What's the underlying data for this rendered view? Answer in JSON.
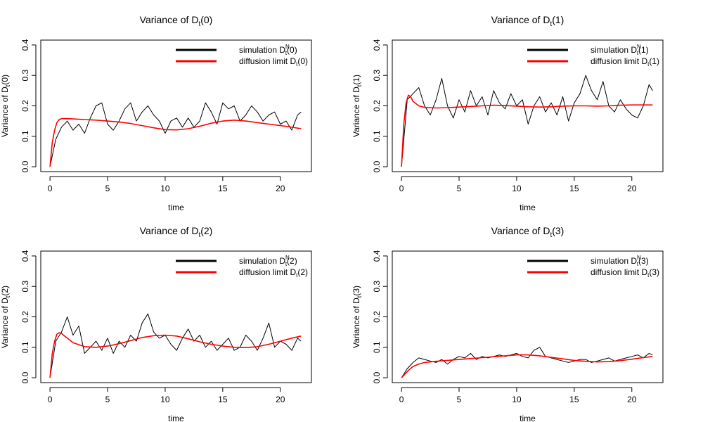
{
  "colors": {
    "simulation": "#000000",
    "diffusion": "#ff0000",
    "axes": "#000000"
  },
  "chart_data": [
    {
      "type": "line",
      "index": "0",
      "title_prefix": "Variance of D",
      "title_sub": "t",
      "title_suffix": "(0)",
      "xlabel": "time",
      "ylabel_prefix": "Variance of D",
      "ylabel_sub": "t",
      "ylabel_suffix": "(0)",
      "xlim": [
        -0.8,
        22.7
      ],
      "ylim": [
        -0.016,
        0.416
      ],
      "xticks": [
        0,
        5,
        10,
        15,
        20
      ],
      "xtick_labels": [
        "0",
        "5",
        "10",
        "15",
        "20"
      ],
      "yticks": [
        0,
        0.1,
        0.2,
        0.3,
        0.4
      ],
      "ytick_labels": [
        "0.0",
        "0.1",
        "0.2",
        "0.3",
        "0.4"
      ],
      "legend_position": "top-right",
      "legend": {
        "sim_prefix": "simulation D",
        "sim_sub": "t",
        "sim_sup": "N",
        "sim_suffix": "(0)",
        "diff_prefix": "diffusion limit D",
        "diff_sub": "t",
        "diff_suffix": "(0)"
      },
      "series": [
        {
          "name": "simulation",
          "x": [
            0,
            0.5,
            1,
            1.5,
            2,
            2.5,
            3,
            3.5,
            4,
            4.5,
            5,
            5.5,
            6,
            6.5,
            7,
            7.5,
            8,
            8.5,
            9,
            9.5,
            10,
            10.5,
            11,
            11.5,
            12,
            12.5,
            13,
            13.5,
            14,
            14.5,
            15,
            15.5,
            16,
            16.5,
            17,
            17.5,
            18,
            18.5,
            19,
            19.5,
            20,
            20.5,
            21,
            21.5,
            21.8
          ],
          "values": [
            0.0,
            0.09,
            0.13,
            0.15,
            0.12,
            0.14,
            0.11,
            0.16,
            0.2,
            0.21,
            0.14,
            0.12,
            0.15,
            0.19,
            0.21,
            0.15,
            0.18,
            0.2,
            0.17,
            0.15,
            0.11,
            0.15,
            0.16,
            0.13,
            0.16,
            0.13,
            0.15,
            0.21,
            0.18,
            0.14,
            0.21,
            0.19,
            0.2,
            0.15,
            0.17,
            0.2,
            0.18,
            0.15,
            0.17,
            0.18,
            0.14,
            0.15,
            0.12,
            0.17,
            0.18
          ]
        },
        {
          "name": "diffusion limit",
          "x": [
            0,
            0.2,
            0.4,
            0.6,
            0.8,
            1,
            1.5,
            2,
            3,
            4,
            5,
            6,
            7,
            8,
            9,
            10,
            11,
            12,
            13,
            14,
            15,
            16,
            17,
            18,
            19,
            20,
            21,
            21.8
          ],
          "values": [
            0.0,
            0.08,
            0.12,
            0.145,
            0.155,
            0.158,
            0.158,
            0.157,
            0.155,
            0.153,
            0.15,
            0.147,
            0.142,
            0.135,
            0.128,
            0.122,
            0.121,
            0.125,
            0.133,
            0.143,
            0.15,
            0.153,
            0.15,
            0.145,
            0.14,
            0.135,
            0.13,
            0.125
          ]
        }
      ]
    },
    {
      "type": "line",
      "index": "1",
      "title_prefix": "Variance of D",
      "title_sub": "t",
      "title_suffix": "(1)",
      "xlabel": "time",
      "ylabel_prefix": "Variance of D",
      "ylabel_sub": "t",
      "ylabel_suffix": "(1)",
      "xlim": [
        -0.8,
        22.7
      ],
      "ylim": [
        -0.016,
        0.416
      ],
      "xticks": [
        0,
        5,
        10,
        15,
        20
      ],
      "xtick_labels": [
        "0",
        "5",
        "10",
        "15",
        "20"
      ],
      "yticks": [
        0,
        0.1,
        0.2,
        0.3,
        0.4
      ],
      "ytick_labels": [
        "0.0",
        "0.1",
        "0.2",
        "0.3",
        "0.4"
      ],
      "legend_position": "top-right",
      "legend": {
        "sim_prefix": "simulation D",
        "sim_sub": "t",
        "sim_sup": "N",
        "sim_suffix": "(1)",
        "diff_prefix": "diffusion limit D",
        "diff_sub": "t",
        "diff_suffix": "(1)"
      },
      "series": [
        {
          "name": "simulation",
          "x": [
            0,
            0.5,
            1,
            1.5,
            2,
            2.5,
            3,
            3.5,
            4,
            4.5,
            5,
            5.5,
            6,
            6.5,
            7,
            7.5,
            8,
            8.5,
            9,
            9.5,
            10,
            10.5,
            11,
            11.5,
            12,
            12.5,
            13,
            13.5,
            14,
            14.5,
            15,
            15.5,
            16,
            16.5,
            17,
            17.5,
            18,
            18.5,
            19,
            19.5,
            20,
            20.5,
            21,
            21.5,
            21.8
          ],
          "values": [
            0.0,
            0.22,
            0.24,
            0.26,
            0.2,
            0.17,
            0.22,
            0.29,
            0.2,
            0.16,
            0.22,
            0.18,
            0.25,
            0.2,
            0.23,
            0.17,
            0.25,
            0.21,
            0.19,
            0.24,
            0.2,
            0.22,
            0.14,
            0.2,
            0.23,
            0.18,
            0.21,
            0.17,
            0.23,
            0.15,
            0.21,
            0.24,
            0.3,
            0.25,
            0.22,
            0.28,
            0.2,
            0.18,
            0.22,
            0.19,
            0.17,
            0.16,
            0.2,
            0.27,
            0.25
          ]
        },
        {
          "name": "diffusion limit",
          "x": [
            0,
            0.2,
            0.4,
            0.6,
            0.8,
            1,
            1.5,
            2,
            3,
            4,
            5,
            6,
            7,
            8,
            9,
            10,
            11,
            12,
            13,
            14,
            15,
            16,
            17,
            18,
            19,
            20,
            21,
            21.8
          ],
          "values": [
            0.0,
            0.14,
            0.21,
            0.235,
            0.23,
            0.215,
            0.2,
            0.195,
            0.193,
            0.194,
            0.196,
            0.198,
            0.2,
            0.202,
            0.201,
            0.199,
            0.197,
            0.196,
            0.197,
            0.199,
            0.2,
            0.2,
            0.199,
            0.2,
            0.202,
            0.203,
            0.203,
            0.203
          ]
        }
      ]
    },
    {
      "type": "line",
      "index": "2",
      "title_prefix": "Variance of D",
      "title_sub": "t",
      "title_suffix": "(2)",
      "xlabel": "time",
      "ylabel_prefix": "Variance of D",
      "ylabel_sub": "t",
      "ylabel_suffix": "(2)",
      "xlim": [
        -0.8,
        22.7
      ],
      "ylim": [
        -0.016,
        0.416
      ],
      "xticks": [
        0,
        5,
        10,
        15,
        20
      ],
      "xtick_labels": [
        "0",
        "5",
        "10",
        "15",
        "20"
      ],
      "yticks": [
        0,
        0.1,
        0.2,
        0.3,
        0.4
      ],
      "ytick_labels": [
        "0.0",
        "0.1",
        "0.2",
        "0.3",
        "0.4"
      ],
      "legend_position": "top-right",
      "legend": {
        "sim_prefix": "simulation D",
        "sim_sub": "t",
        "sim_sup": "N",
        "sim_suffix": "(2)",
        "diff_prefix": "diffusion limit D",
        "diff_sub": "t",
        "diff_suffix": "(2)"
      },
      "series": [
        {
          "name": "simulation",
          "x": [
            0,
            0.5,
            1,
            1.5,
            2,
            2.5,
            3,
            3.5,
            4,
            4.5,
            5,
            5.5,
            6,
            6.5,
            7,
            7.5,
            8,
            8.5,
            9,
            9.5,
            10,
            10.5,
            11,
            11.5,
            12,
            12.5,
            13,
            13.5,
            14,
            14.5,
            15,
            15.5,
            16,
            16.5,
            17,
            17.5,
            18,
            18.5,
            19,
            19.5,
            20,
            20.5,
            21,
            21.5,
            21.8
          ],
          "values": [
            0.0,
            0.12,
            0.15,
            0.2,
            0.14,
            0.17,
            0.08,
            0.1,
            0.12,
            0.09,
            0.13,
            0.08,
            0.12,
            0.1,
            0.14,
            0.12,
            0.18,
            0.21,
            0.15,
            0.13,
            0.14,
            0.11,
            0.09,
            0.13,
            0.16,
            0.12,
            0.14,
            0.1,
            0.12,
            0.09,
            0.11,
            0.13,
            0.09,
            0.1,
            0.14,
            0.12,
            0.09,
            0.13,
            0.18,
            0.1,
            0.12,
            0.11,
            0.09,
            0.13,
            0.12
          ]
        },
        {
          "name": "diffusion limit",
          "x": [
            0,
            0.2,
            0.4,
            0.6,
            0.8,
            1,
            1.5,
            2,
            3,
            4,
            5,
            6,
            7,
            8,
            9,
            10,
            11,
            12,
            13,
            14,
            15,
            16,
            17,
            18,
            19,
            20,
            21,
            21.8
          ],
          "values": [
            0.0,
            0.08,
            0.12,
            0.143,
            0.148,
            0.145,
            0.13,
            0.115,
            0.102,
            0.1,
            0.104,
            0.112,
            0.122,
            0.132,
            0.138,
            0.14,
            0.137,
            0.128,
            0.118,
            0.11,
            0.104,
            0.1,
            0.099,
            0.102,
            0.11,
            0.12,
            0.13,
            0.137
          ]
        }
      ]
    },
    {
      "type": "line",
      "index": "3",
      "title_prefix": "Variance of D",
      "title_sub": "t",
      "title_suffix": "(3)",
      "xlabel": "time",
      "ylabel_prefix": "Variance of D",
      "ylabel_sub": "t",
      "ylabel_suffix": "(3)",
      "xlim": [
        -0.8,
        22.7
      ],
      "ylim": [
        -0.016,
        0.416
      ],
      "xticks": [
        0,
        5,
        10,
        15,
        20
      ],
      "xtick_labels": [
        "0",
        "5",
        "10",
        "15",
        "20"
      ],
      "yticks": [
        0,
        0.1,
        0.2,
        0.3,
        0.4
      ],
      "ytick_labels": [
        "0.0",
        "0.1",
        "0.2",
        "0.3",
        "0.4"
      ],
      "legend_position": "top-right",
      "legend": {
        "sim_prefix": "simulation D",
        "sim_sub": "t",
        "sim_sup": "N",
        "sim_suffix": "(3)",
        "diff_prefix": "diffusion limit D",
        "diff_sub": "t",
        "diff_suffix": "(3)"
      },
      "series": [
        {
          "name": "simulation",
          "x": [
            0,
            0.5,
            1,
            1.5,
            2,
            2.5,
            3,
            3.5,
            4,
            4.5,
            5,
            5.5,
            6,
            6.5,
            7,
            7.5,
            8,
            8.5,
            9,
            9.5,
            10,
            10.5,
            11,
            11.5,
            12,
            12.5,
            13,
            13.5,
            14,
            14.5,
            15,
            15.5,
            16,
            16.5,
            17,
            17.5,
            18,
            18.5,
            19,
            19.5,
            20,
            20.5,
            21,
            21.5,
            21.8
          ],
          "values": [
            0.0,
            0.03,
            0.05,
            0.065,
            0.06,
            0.055,
            0.05,
            0.06,
            0.045,
            0.06,
            0.07,
            0.065,
            0.08,
            0.06,
            0.07,
            0.065,
            0.07,
            0.075,
            0.07,
            0.075,
            0.08,
            0.07,
            0.065,
            0.09,
            0.1,
            0.07,
            0.065,
            0.06,
            0.055,
            0.05,
            0.055,
            0.06,
            0.06,
            0.05,
            0.055,
            0.06,
            0.065,
            0.055,
            0.06,
            0.065,
            0.07,
            0.075,
            0.065,
            0.08,
            0.075
          ]
        },
        {
          "name": "diffusion limit",
          "x": [
            0,
            0.2,
            0.4,
            0.6,
            0.8,
            1,
            1.5,
            2,
            3,
            4,
            5,
            6,
            7,
            8,
            9,
            10,
            11,
            12,
            13,
            14,
            15,
            16,
            17,
            18,
            19,
            20,
            21,
            21.8
          ],
          "values": [
            0.0,
            0.008,
            0.016,
            0.024,
            0.031,
            0.037,
            0.045,
            0.05,
            0.054,
            0.057,
            0.06,
            0.063,
            0.066,
            0.069,
            0.072,
            0.075,
            0.075,
            0.072,
            0.067,
            0.062,
            0.057,
            0.054,
            0.052,
            0.053,
            0.056,
            0.061,
            0.066,
            0.07
          ]
        }
      ]
    }
  ]
}
